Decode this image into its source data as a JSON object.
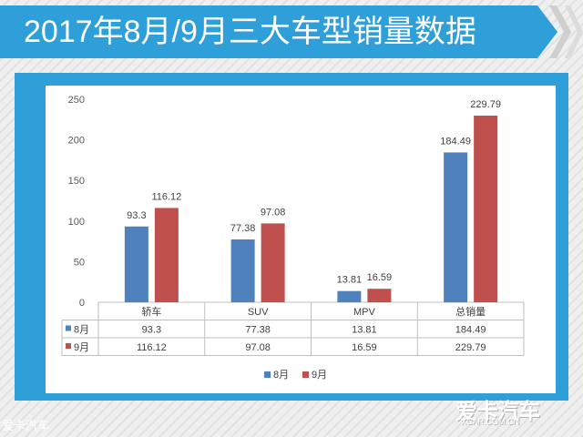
{
  "title": "2017年8月/9月三大车型销量数据",
  "watermark": "爱卡汽车",
  "logo": {
    "main": "爱卡汽车",
    "sub": "XCAR.COM.CN"
  },
  "chart_data": {
    "type": "bar",
    "categories": [
      "轿车",
      "SUV",
      "MPV",
      "总销量"
    ],
    "series": [
      {
        "name": "8月",
        "values": [
          93.3,
          77.38,
          13.81,
          184.49
        ]
      },
      {
        "name": "9月",
        "values": [
          116.12,
          97.08,
          16.59,
          229.79
        ]
      }
    ],
    "y_ticks": [
      0,
      50,
      100,
      150,
      200,
      250
    ],
    "ylim": [
      0,
      250
    ],
    "legend": "bottom",
    "data_table": true,
    "grid": false,
    "colors": {
      "8月": "#4f81bd",
      "9月": "#c0504d"
    }
  }
}
